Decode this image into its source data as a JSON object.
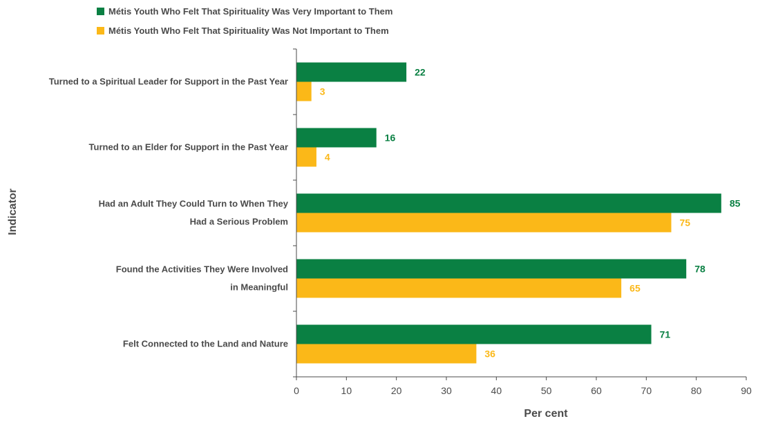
{
  "chart_data": {
    "type": "bar",
    "orientation": "horizontal",
    "categories": [
      [
        "Turned  to a Spiritual Leader for Support in the Past Year"
      ],
      [
        "Turned to an Elder for Support in the Past Year"
      ],
      [
        "Had an Adult They Could Turn to When They",
        "Had a Serious Problem"
      ],
      [
        "Found the Activities They Were Involved",
        "in Meaningful"
      ],
      [
        "Felt Connected to the Land and Nature"
      ]
    ],
    "series": [
      {
        "name": "Métis Youth Who Felt That Spirituality Was Very Important to Them",
        "color": "#0a8043",
        "values": [
          22,
          16,
          85,
          78,
          71
        ]
      },
      {
        "name": "Métis Youth Who Felt That Spirituality Was Not Important to Them",
        "color": "#fbb818",
        "values": [
          3,
          4,
          75,
          65,
          36
        ]
      }
    ],
    "xlabel": "Per cent",
    "ylabel": "Indicator",
    "xlim": [
      0,
      90
    ],
    "xticks": [
      0,
      10,
      20,
      30,
      40,
      50,
      60,
      70,
      80,
      90
    ],
    "legend_position": "top-left",
    "grid": false
  }
}
